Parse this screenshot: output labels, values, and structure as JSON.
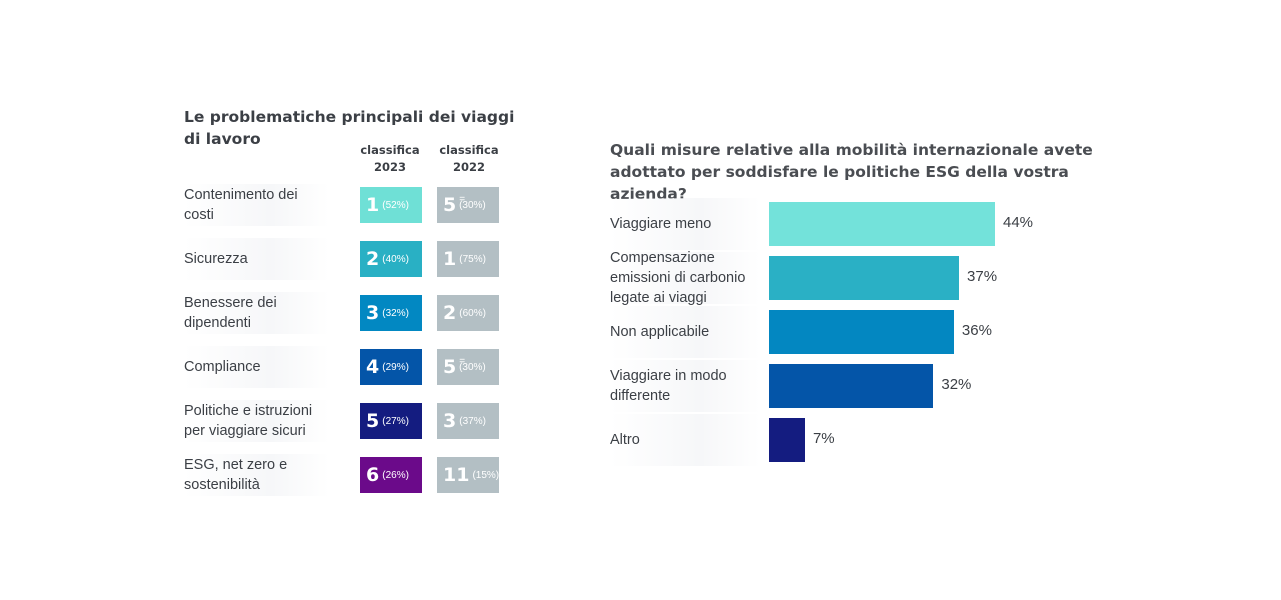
{
  "left_panel": {
    "title": "Le problematiche principali dei viaggi di lavoro",
    "col_2023": "classifica 2023",
    "col_2022": "classifica 2022",
    "rows": [
      {
        "label": "Contenimento dei costi",
        "rank_2023": "1",
        "pct_2023": "(52%)",
        "color_2023": "#6fe0d6",
        "rank_2022": "5",
        "pct_2022": "(30%)",
        "tie_2022": "="
      },
      {
        "label": "Sicurezza",
        "rank_2023": "2",
        "pct_2023": "(40%)",
        "color_2023": "#29b0c4",
        "rank_2022": "1",
        "pct_2022": "(75%)",
        "tie_2022": ""
      },
      {
        "label": "Benessere dei dipendenti",
        "rank_2023": "3",
        "pct_2023": "(32%)",
        "color_2023": "#0288c2",
        "rank_2022": "2",
        "pct_2022": "(60%)",
        "tie_2022": ""
      },
      {
        "label": "Compliance",
        "rank_2023": "4",
        "pct_2023": "(29%)",
        "color_2023": "#0455a8",
        "rank_2022": "5",
        "pct_2022": "(30%)",
        "tie_2022": "="
      },
      {
        "label": "Politiche e istruzioni per viaggiare sicuri",
        "rank_2023": "5",
        "pct_2023": "(27%)",
        "color_2023": "#141c80",
        "rank_2022": "3",
        "pct_2022": "(37%)",
        "tie_2022": ""
      },
      {
        "label": "ESG, net zero e sostenibilità",
        "rank_2023": "6",
        "pct_2023": "(26%)",
        "color_2023": "#6b0a8a",
        "rank_2022": "11",
        "pct_2022": "(15%)",
        "tie_2022": ""
      }
    ],
    "color_2022": "#b3bfc4"
  },
  "chart_data": {
    "type": "bar",
    "orientation": "horizontal",
    "title": "Quali misure relative alla mobilità internazionale avete adottato per soddisfare le politiche ESG della vostra azienda?",
    "categories": [
      "Viaggiare meno",
      "Compensazione emissioni di carbonio legate ai viaggi",
      "Non applicabile",
      "Viaggiare in modo differente",
      "Altro"
    ],
    "values": [
      44,
      37,
      36,
      32,
      7
    ],
    "value_labels": [
      "44%",
      "37%",
      "36%",
      "32%",
      "7%"
    ],
    "colors": [
      "#73e2da",
      "#2ab0c5",
      "#0387c1",
      "#0455a8",
      "#141c80"
    ],
    "xlim": [
      0,
      44
    ],
    "grid": false,
    "legend": "none"
  }
}
